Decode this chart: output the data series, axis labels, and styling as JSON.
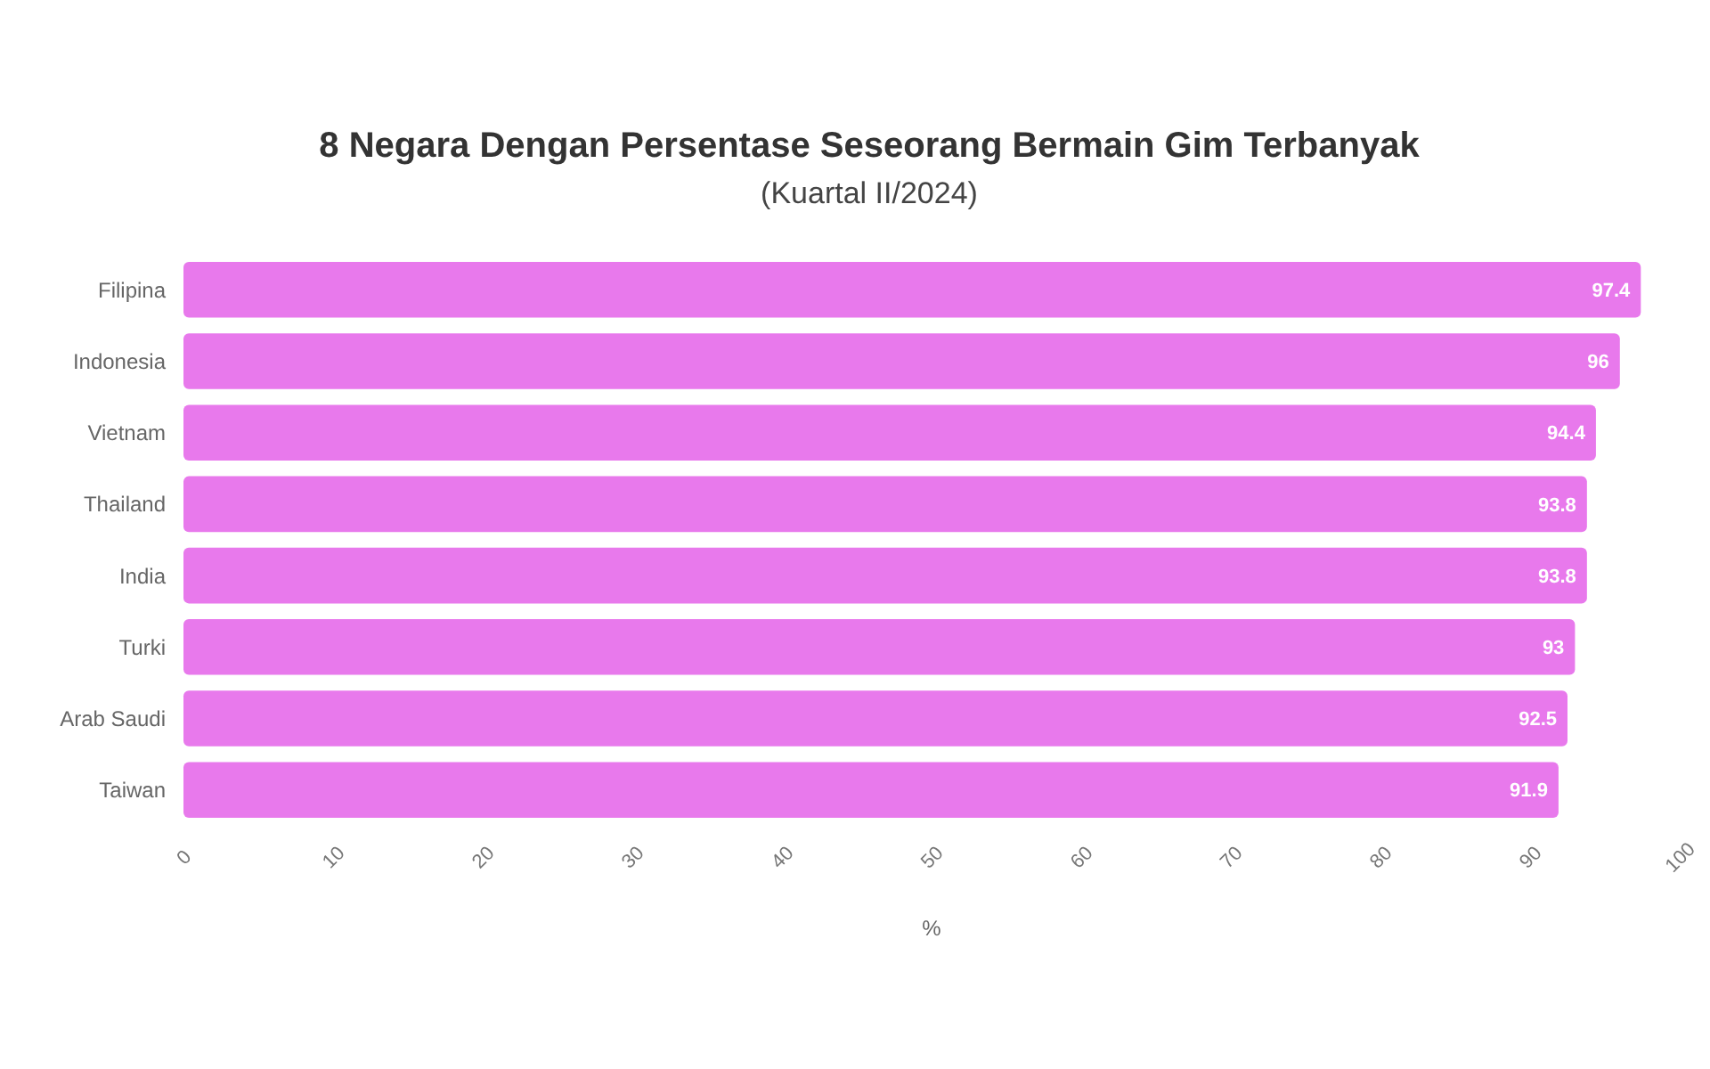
{
  "chart_data": {
    "type": "bar",
    "orientation": "horizontal",
    "title": "8 Negara Dengan Persentase Seseorang Bermain Gim Terbanyak",
    "subtitle": "(Kuartal II/2024)",
    "xlabel": "%",
    "categories": [
      "Filipina",
      "Indonesia",
      "Vietnam",
      "Thailand",
      "India",
      "Turki",
      "Arab Saudi",
      "Taiwan"
    ],
    "values": [
      97.4,
      96.0,
      94.4,
      93.8,
      93.8,
      93.0,
      92.5,
      91.9
    ],
    "color": "#e879ec",
    "data_labels": true,
    "xlim": [
      0,
      100
    ],
    "xticks": [
      0,
      10,
      20,
      30,
      40,
      50,
      60,
      70,
      80,
      90,
      100
    ]
  }
}
